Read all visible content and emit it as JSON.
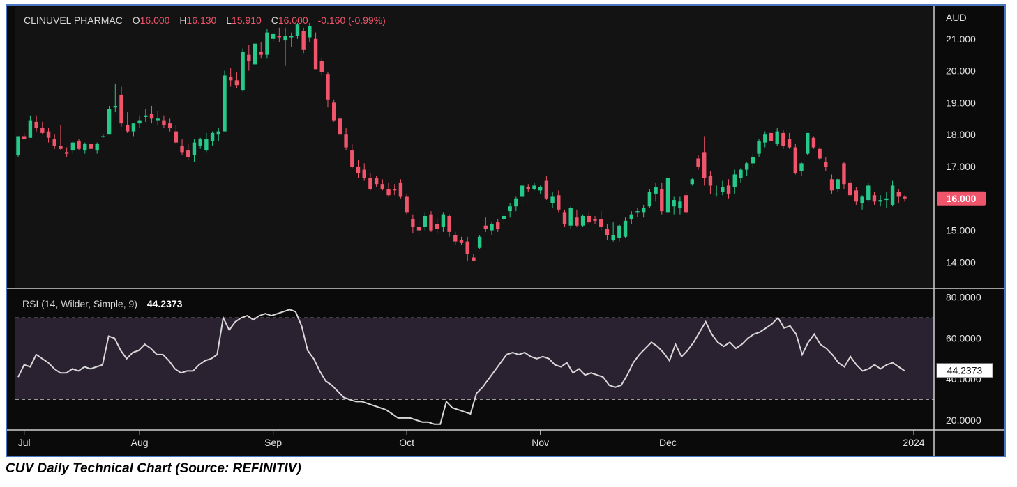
{
  "header": {
    "symbol": "CLINUVEL PHARMAC",
    "o_key": "O",
    "o_val": "16.000",
    "h_key": "H",
    "h_val": "16.130",
    "l_key": "L",
    "l_val": "15.910",
    "c_key": "C",
    "c_val": "16.000",
    "change": "-0.160 (-0.99%)"
  },
  "caption": "CUV Daily Technical Chart (Source: REFINITIV)",
  "colors": {
    "up": "#26c98a",
    "down": "#f0556c",
    "price_badge": "#f0556c",
    "rsi_line": "#d8d8d8",
    "rsi_band": "#2a2230",
    "header_value": "#f0556c"
  },
  "chart_data": [
    {
      "type": "candlestick",
      "currency_label": "AUD",
      "y_ticks": [
        "21.000",
        "20.000",
        "19.000",
        "18.000",
        "17.000",
        "16.000",
        "15.000",
        "14.000"
      ],
      "ylim": [
        13.2,
        22.0
      ],
      "x_ticks": [
        "Jul",
        "Aug",
        "Sep",
        "Oct",
        "Nov",
        "Dec",
        "2024"
      ],
      "last_price_label": "16.000",
      "candles": [
        [
          17.35,
          17.95,
          17.3,
          17.95
        ],
        [
          17.95,
          18.05,
          17.85,
          17.85
        ],
        [
          17.9,
          18.6,
          17.9,
          18.45
        ],
        [
          18.4,
          18.6,
          18.1,
          18.2
        ],
        [
          18.2,
          18.4,
          18.0,
          18.05
        ],
        [
          18.1,
          18.2,
          17.75,
          17.9
        ],
        [
          17.85,
          18.0,
          17.55,
          17.65
        ],
        [
          17.65,
          18.3,
          17.5,
          17.55
        ],
        [
          17.45,
          17.6,
          17.3,
          17.4
        ],
        [
          17.5,
          17.8,
          17.4,
          17.75
        ],
        [
          17.8,
          17.85,
          17.5,
          17.55
        ],
        [
          17.5,
          17.75,
          17.4,
          17.7
        ],
        [
          17.7,
          17.8,
          17.45,
          17.55
        ],
        [
          17.5,
          17.75,
          17.4,
          17.7
        ],
        [
          17.95,
          18.0,
          17.9,
          17.95
        ],
        [
          18.0,
          18.9,
          18.0,
          18.8
        ],
        [
          18.85,
          19.6,
          18.7,
          18.9
        ],
        [
          19.25,
          19.5,
          18.25,
          18.35
        ],
        [
          18.3,
          18.7,
          18.05,
          18.1
        ],
        [
          18.1,
          18.3,
          17.95,
          18.35
        ],
        [
          18.35,
          18.6,
          18.2,
          18.45
        ],
        [
          18.55,
          18.8,
          18.4,
          18.6
        ],
        [
          18.65,
          18.9,
          18.35,
          18.5
        ],
        [
          18.45,
          18.75,
          18.3,
          18.5
        ],
        [
          18.45,
          18.6,
          18.2,
          18.3
        ],
        [
          18.35,
          18.5,
          18.1,
          18.2
        ],
        [
          18.1,
          18.3,
          17.7,
          17.75
        ],
        [
          17.65,
          17.85,
          17.35,
          17.45
        ],
        [
          17.5,
          17.7,
          17.2,
          17.3
        ],
        [
          17.35,
          17.85,
          17.15,
          17.75
        ],
        [
          17.65,
          17.9,
          17.55,
          17.85
        ],
        [
          17.5,
          18.05,
          17.45,
          17.85
        ],
        [
          17.8,
          18.1,
          17.65,
          18.05
        ],
        [
          18.0,
          18.2,
          17.8,
          18.1
        ],
        [
          18.1,
          20.0,
          18.1,
          19.85
        ],
        [
          19.8,
          20.1,
          19.5,
          19.7
        ],
        [
          19.7,
          19.95,
          19.45,
          19.55
        ],
        [
          19.4,
          20.7,
          19.35,
          20.6
        ],
        [
          20.5,
          20.8,
          20.0,
          20.3
        ],
        [
          20.2,
          20.95,
          20.0,
          20.85
        ],
        [
          20.6,
          20.9,
          20.4,
          20.5
        ],
        [
          20.5,
          21.3,
          20.4,
          21.2
        ],
        [
          21.0,
          21.2,
          20.9,
          21.15
        ],
        [
          21.1,
          21.35,
          20.9,
          21.05
        ],
        [
          20.95,
          21.35,
          20.15,
          21.1
        ],
        [
          21.05,
          21.2,
          20.75,
          21.1
        ],
        [
          21.1,
          21.5,
          21.0,
          21.45
        ],
        [
          21.25,
          21.35,
          20.55,
          20.65
        ],
        [
          21.05,
          21.5,
          20.9,
          21.4
        ],
        [
          21.0,
          21.2,
          20.05,
          20.05
        ],
        [
          20.3,
          20.4,
          19.85,
          19.95
        ],
        [
          19.9,
          19.95,
          18.85,
          19.1
        ],
        [
          19.0,
          19.1,
          18.4,
          18.45
        ],
        [
          18.5,
          18.6,
          17.95,
          18.0
        ],
        [
          18.0,
          18.2,
          17.5,
          17.6
        ],
        [
          17.5,
          17.7,
          16.95,
          17.0
        ],
        [
          17.0,
          17.2,
          16.65,
          16.8
        ],
        [
          16.9,
          17.1,
          16.55,
          16.65
        ],
        [
          16.65,
          16.8,
          16.25,
          16.3
        ],
        [
          16.65,
          16.7,
          16.35,
          16.45
        ],
        [
          16.45,
          16.6,
          16.25,
          16.3
        ],
        [
          16.3,
          16.5,
          16.05,
          16.1
        ],
        [
          16.3,
          16.45,
          16.1,
          16.25
        ],
        [
          16.5,
          16.6,
          16.0,
          16.05
        ],
        [
          16.05,
          16.15,
          15.5,
          15.55
        ],
        [
          15.35,
          15.5,
          14.9,
          15.1
        ],
        [
          15.1,
          15.3,
          14.85,
          15.0
        ],
        [
          15.1,
          15.55,
          15.0,
          15.45
        ],
        [
          15.5,
          15.6,
          14.95,
          15.0
        ],
        [
          15.2,
          15.35,
          14.9,
          15.05
        ],
        [
          15.1,
          15.55,
          14.95,
          15.5
        ],
        [
          15.45,
          15.5,
          14.8,
          14.95
        ],
        [
          14.85,
          14.95,
          14.55,
          14.65
        ],
        [
          14.7,
          14.8,
          14.55,
          14.6
        ],
        [
          14.65,
          14.8,
          14.05,
          14.25
        ],
        [
          14.15,
          14.25,
          14.05,
          14.05
        ],
        [
          14.45,
          14.85,
          14.4,
          14.8
        ],
        [
          15.15,
          15.4,
          14.95,
          15.05
        ],
        [
          15.0,
          15.25,
          14.85,
          15.2
        ],
        [
          15.25,
          15.35,
          14.95,
          15.05
        ],
        [
          15.35,
          15.5,
          15.2,
          15.45
        ],
        [
          15.6,
          15.85,
          15.4,
          15.75
        ],
        [
          15.75,
          16.05,
          15.6,
          16.0
        ],
        [
          16.05,
          16.5,
          15.85,
          16.4
        ],
        [
          16.35,
          16.45,
          16.2,
          16.3
        ],
        [
          16.3,
          16.5,
          16.25,
          16.4
        ],
        [
          16.25,
          16.4,
          16.15,
          16.35
        ],
        [
          16.55,
          16.7,
          15.95,
          16.0
        ],
        [
          15.85,
          16.2,
          15.7,
          16.05
        ],
        [
          16.1,
          16.25,
          15.55,
          15.65
        ],
        [
          15.55,
          15.65,
          15.1,
          15.2
        ],
        [
          15.15,
          15.75,
          15.05,
          15.7
        ],
        [
          15.4,
          15.65,
          15.1,
          15.15
        ],
        [
          15.15,
          15.5,
          15.1,
          15.45
        ],
        [
          15.45,
          15.55,
          15.2,
          15.25
        ],
        [
          15.35,
          15.45,
          15.2,
          15.3
        ],
        [
          15.35,
          15.6,
          15.0,
          15.1
        ],
        [
          15.05,
          15.2,
          14.7,
          14.85
        ],
        [
          14.7,
          15.25,
          14.65,
          14.85
        ],
        [
          14.75,
          15.2,
          14.65,
          15.15
        ],
        [
          14.8,
          15.4,
          14.75,
          15.3
        ],
        [
          15.35,
          15.6,
          15.2,
          15.5
        ],
        [
          15.55,
          15.7,
          15.4,
          15.6
        ],
        [
          15.55,
          15.8,
          15.4,
          15.7
        ],
        [
          15.75,
          16.3,
          15.7,
          16.2
        ],
        [
          16.15,
          16.5,
          15.9,
          16.35
        ],
        [
          16.3,
          16.5,
          15.5,
          15.6
        ],
        [
          15.55,
          16.8,
          15.5,
          16.65
        ],
        [
          15.75,
          16.05,
          15.5,
          15.95
        ],
        [
          15.7,
          16.05,
          15.5,
          15.9
        ],
        [
          16.1,
          16.2,
          15.5,
          15.55
        ],
        [
          16.45,
          16.65,
          16.4,
          16.6
        ],
        [
          17.25,
          17.35,
          16.9,
          17.0
        ],
        [
          17.45,
          17.95,
          16.4,
          16.65
        ],
        [
          16.7,
          16.85,
          16.15,
          16.4
        ],
        [
          16.15,
          16.4,
          16.05,
          16.15
        ],
        [
          16.2,
          16.55,
          16.1,
          16.35
        ],
        [
          16.4,
          16.6,
          16.0,
          16.15
        ],
        [
          16.35,
          16.9,
          16.15,
          16.75
        ],
        [
          16.65,
          16.95,
          16.5,
          16.9
        ],
        [
          16.9,
          17.15,
          16.7,
          17.1
        ],
        [
          17.1,
          17.4,
          16.95,
          17.3
        ],
        [
          17.4,
          17.85,
          17.3,
          17.8
        ],
        [
          17.75,
          18.1,
          17.6,
          18.0
        ],
        [
          18.05,
          18.15,
          17.75,
          17.8
        ],
        [
          17.7,
          18.2,
          17.65,
          18.1
        ],
        [
          18.05,
          18.15,
          17.55,
          17.65
        ],
        [
          17.85,
          18.05,
          17.55,
          17.6
        ],
        [
          17.6,
          17.7,
          16.75,
          16.8
        ],
        [
          16.85,
          17.15,
          16.7,
          17.1
        ],
        [
          17.4,
          18.05,
          17.35,
          18.05
        ],
        [
          17.9,
          17.95,
          17.55,
          17.6
        ],
        [
          17.55,
          17.6,
          17.2,
          17.25
        ],
        [
          17.15,
          17.3,
          16.85,
          17.0
        ],
        [
          16.6,
          16.75,
          16.15,
          16.25
        ],
        [
          16.3,
          16.65,
          16.2,
          16.6
        ],
        [
          17.1,
          17.15,
          16.3,
          16.45
        ],
        [
          16.5,
          16.6,
          16.05,
          16.1
        ],
        [
          16.25,
          16.35,
          15.8,
          15.9
        ],
        [
          15.85,
          16.1,
          15.65,
          16.05
        ],
        [
          15.95,
          16.5,
          15.9,
          16.4
        ],
        [
          16.1,
          16.2,
          15.8,
          15.9
        ],
        [
          15.9,
          16.1,
          15.75,
          15.95
        ],
        [
          15.95,
          16.2,
          15.7,
          16.0
        ],
        [
          15.8,
          16.55,
          15.75,
          16.4
        ],
        [
          16.2,
          16.3,
          15.85,
          16.05
        ],
        [
          16.05,
          16.1,
          15.9,
          16.0
        ]
      ]
    },
    {
      "type": "line",
      "title": "RSI (14, Wilder, Simple, 9)",
      "last_value_label": "44.2373",
      "y_ticks": [
        "80.0000",
        "60.0000",
        "40.0000",
        "20.0000"
      ],
      "ylim": [
        15.5,
        84.0
      ],
      "overbought": 70,
      "oversold": 30,
      "series": [
        {
          "values": [
            41,
            47,
            46,
            52,
            50,
            48,
            45,
            43,
            43,
            45,
            44,
            46,
            45,
            46,
            47,
            61,
            60,
            54,
            50,
            53,
            54,
            57,
            55,
            52,
            52,
            49,
            45,
            43,
            44,
            44,
            47,
            49,
            50,
            52,
            70,
            64,
            68,
            70,
            71,
            69,
            71,
            72,
            71,
            72,
            73,
            74,
            73,
            66,
            54,
            50,
            44,
            39,
            37,
            34,
            31,
            30,
            29,
            29,
            28,
            27,
            26,
            25,
            23,
            21,
            21,
            21,
            20,
            19,
            19,
            18,
            18,
            29,
            26,
            25,
            24,
            23,
            33,
            36,
            40,
            44,
            48,
            52,
            53,
            52,
            53,
            51,
            50,
            51,
            50,
            47,
            46,
            48,
            43,
            45,
            42,
            43,
            42,
            41,
            37,
            36,
            37,
            42,
            48,
            52,
            55,
            58,
            56,
            53,
            49,
            57,
            51,
            54,
            58,
            63,
            68,
            62,
            58,
            56,
            58,
            55,
            57,
            60,
            62,
            63,
            65,
            67,
            70,
            65,
            66,
            62,
            52,
            58,
            62,
            57,
            55,
            52,
            48,
            46,
            51,
            47,
            44,
            45,
            47,
            45,
            47,
            48,
            46,
            44
          ]
        }
      ]
    }
  ]
}
